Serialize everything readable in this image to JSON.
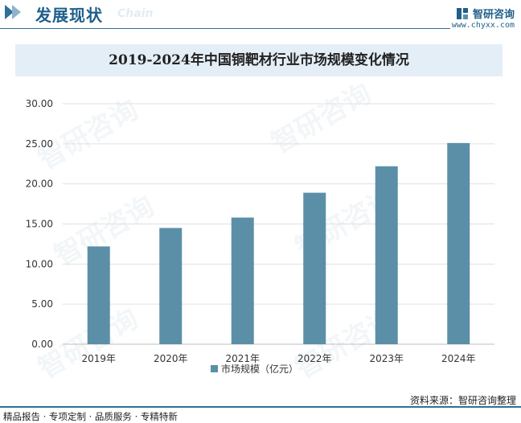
{
  "header": {
    "section_title": "发展现状",
    "section_subtitle": "Chain",
    "brand_name": "智研咨询",
    "brand_url": "www.chyxx.com"
  },
  "watermark": "智研咨询",
  "source": "资料来源：智研咨询整理",
  "footer": "精品报告 · 专项定制 · 品质服务 · 专精特新",
  "colors": {
    "bar": "#5b8fa8",
    "accent": "#1f5f8b",
    "title_bg": "#e4eef6"
  },
  "chart_data": {
    "type": "bar",
    "title": "2019-2024年中国铜靶材行业市场规模变化情况",
    "categories": [
      "2019年",
      "2020年",
      "2021年",
      "2022年",
      "2023年",
      "2024年"
    ],
    "series": [
      {
        "name": "市场规模（亿元）",
        "values": [
          12.2,
          14.5,
          15.8,
          18.9,
          22.2,
          25.1
        ]
      }
    ],
    "ylim": [
      0,
      30
    ],
    "yticks": [
      "0.00",
      "5.00",
      "10.00",
      "15.00",
      "20.00",
      "25.00",
      "30.00"
    ],
    "grid": true,
    "legend": "bottom"
  }
}
